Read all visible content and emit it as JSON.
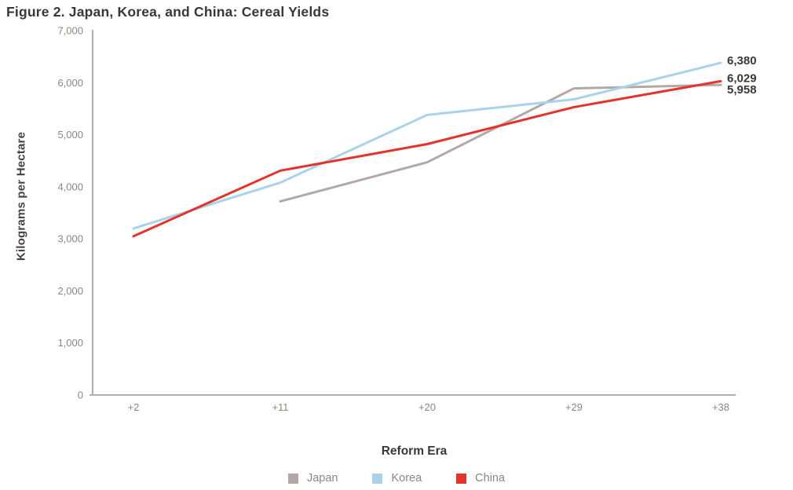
{
  "figure": {
    "title": "Figure 2. Japan, Korea, and China: Cereal Yields"
  },
  "chart_data": {
    "type": "line",
    "title": "Figure 2. Japan, Korea, and China: Cereal Yields",
    "xlabel": "Reform Era",
    "ylabel": "Kilograms per Hectare",
    "categories": [
      "+2",
      "+11",
      "+20",
      "+29",
      "+38"
    ],
    "ylim": [
      0,
      7000
    ],
    "ytick_values": [
      0,
      1000,
      2000,
      3000,
      4000,
      5000,
      6000,
      7000
    ],
    "ytick_labels": [
      "0",
      "1,000",
      "2,000",
      "3,000",
      "4,000",
      "5,000",
      "6,000",
      "7,000"
    ],
    "grid": false,
    "legend_position": "bottom",
    "series": [
      {
        "name": "Japan",
        "color": "#b2a9a6",
        "values": [
          null,
          3720,
          4470,
          5890,
          5958
        ],
        "end_label": "5,958"
      },
      {
        "name": "Korea",
        "color": "#a9d3e9",
        "values": [
          3200,
          4080,
          5380,
          5680,
          6380
        ],
        "end_label": "6,380"
      },
      {
        "name": "China",
        "color": "#e2342b",
        "values": [
          3050,
          4310,
          4820,
          5530,
          6029
        ],
        "end_label": "6,029"
      }
    ]
  },
  "colors": {
    "axis_line": "#b3aca9",
    "tick_text": "#8d8680",
    "dark_text": "#3b3734"
  }
}
